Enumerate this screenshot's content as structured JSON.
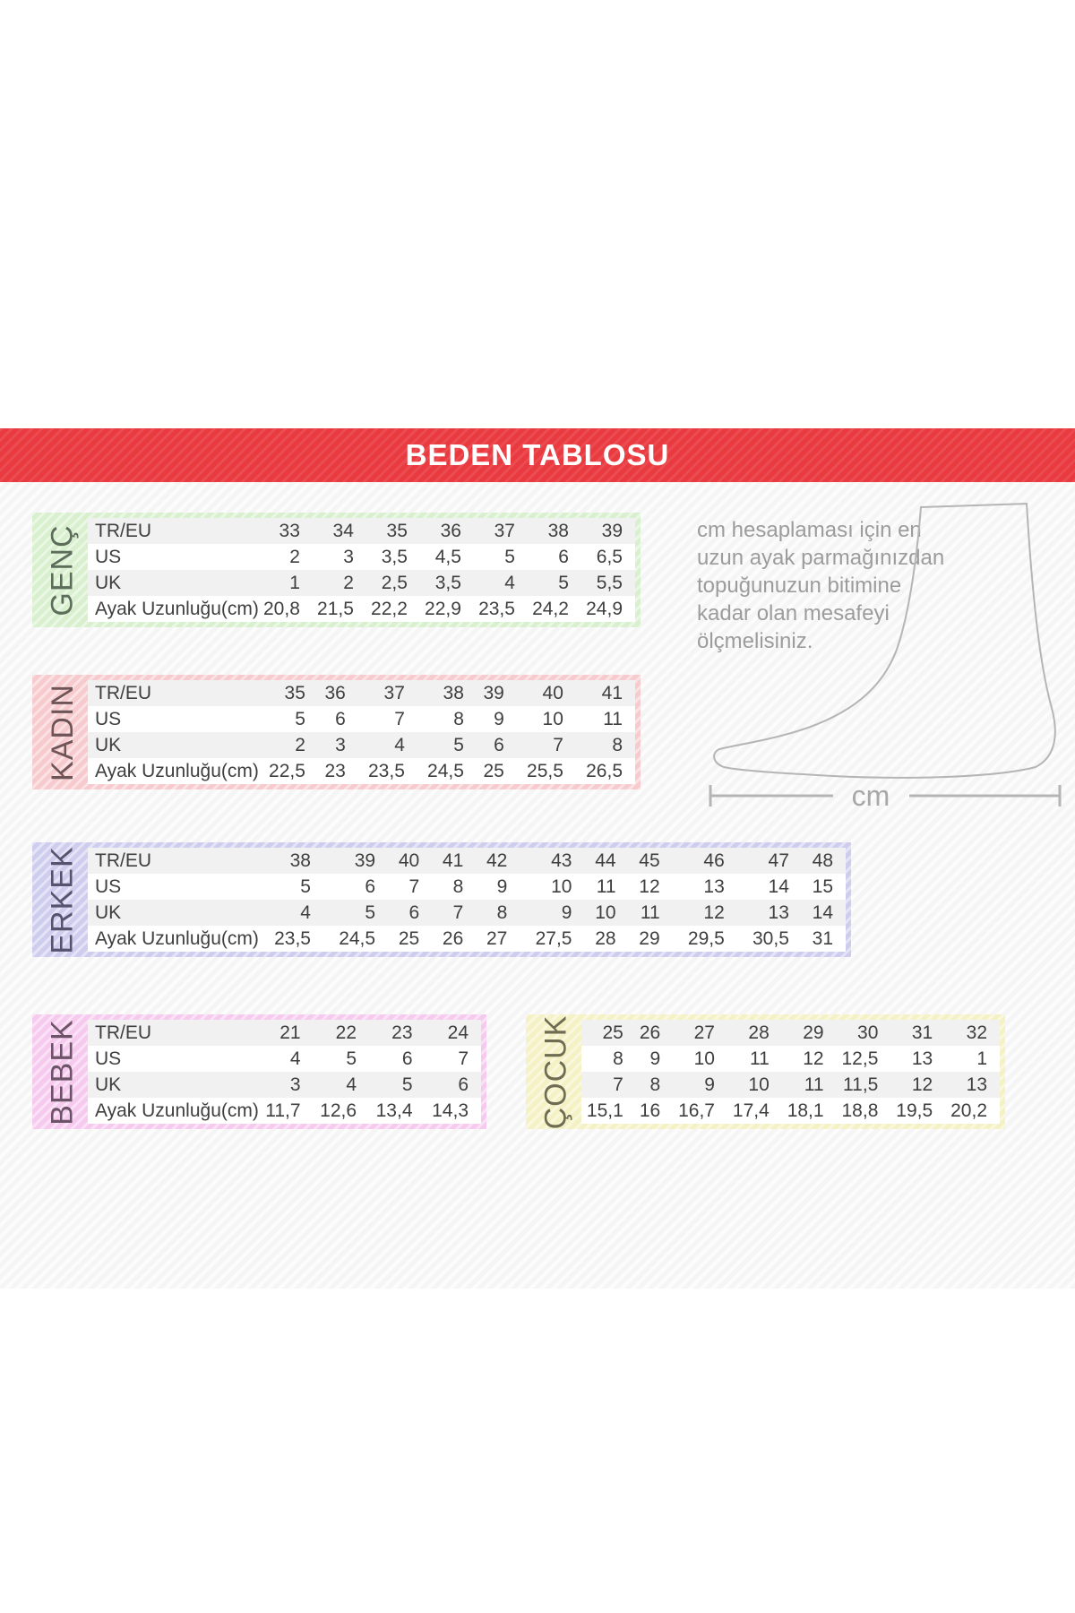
{
  "title": "BEDEN TABLOSU",
  "note_text": "cm hesaplaması için en\nuzun ayak parmağınızdan\ntopuğunuzun bitimine\nkadar olan mesafeyi\nölçmelisiniz.",
  "diagram": {
    "unit_label": "cm"
  },
  "colors": {
    "banner_red": "#e93a40",
    "row_alt_gray": "#f1f1f1",
    "cell_text": "#3f3f3f",
    "note_gray": "#9c9c9c"
  },
  "tables": [
    {
      "id": "genc",
      "category": "GENÇ",
      "accent": "#d9f0cf",
      "label_color": "#5c6d59",
      "rows": [
        {
          "label": "TR/EU",
          "values": [
            "33",
            "34",
            "35",
            "36",
            "37",
            "38",
            "39"
          ]
        },
        {
          "label": "US",
          "values": [
            "2",
            "3",
            "3,5",
            "4,5",
            "5",
            "6",
            "6,5"
          ]
        },
        {
          "label": "UK",
          "values": [
            "1",
            "2",
            "2,5",
            "3,5",
            "4",
            "5",
            "5,5"
          ]
        },
        {
          "label": "Ayak Uzunluğu(cm)",
          "values": [
            "20,8",
            "21,5",
            "22,2",
            "22,9",
            "23,5",
            "24,2",
            "24,9"
          ]
        }
      ]
    },
    {
      "id": "kadin",
      "category": "KADIN",
      "accent": "#f7cacd",
      "label_color": "#6e5456",
      "rows": [
        {
          "label": "TR/EU",
          "values": [
            "35",
            "36",
            "37",
            "38",
            "39",
            "40",
            "41"
          ]
        },
        {
          "label": "US",
          "values": [
            "5",
            "6",
            "7",
            "8",
            "9",
            "10",
            "11"
          ]
        },
        {
          "label": "UK",
          "values": [
            "2",
            "3",
            "4",
            "5",
            "6",
            "7",
            "8"
          ]
        },
        {
          "label": "Ayak Uzunluğu(cm)",
          "values": [
            "22,5",
            "23",
            "23,5",
            "24,5",
            "25",
            "25,5",
            "26,5"
          ]
        }
      ]
    },
    {
      "id": "erkek",
      "category": "ERKEK",
      "accent": "#cfcdee",
      "label_color": "#55546f",
      "rows": [
        {
          "label": "TR/EU",
          "values": [
            "38",
            "39",
            "40",
            "41",
            "42",
            "43",
            "44",
            "45",
            "46",
            "47",
            "48"
          ]
        },
        {
          "label": "US",
          "values": [
            "5",
            "6",
            "7",
            "8",
            "9",
            "10",
            "11",
            "12",
            "13",
            "14",
            "15"
          ]
        },
        {
          "label": "UK",
          "values": [
            "4",
            "5",
            "6",
            "7",
            "8",
            "9",
            "10",
            "11",
            "12",
            "13",
            "14"
          ]
        },
        {
          "label": "Ayak Uzunluğu(cm)",
          "values": [
            "23,5",
            "24,5",
            "25",
            "26",
            "27",
            "27,5",
            "28",
            "29",
            "29,5",
            "30,5",
            "31"
          ]
        }
      ]
    },
    {
      "id": "bebek",
      "category": "BEBEK",
      "accent": "#f6c9ef",
      "label_color": "#6d5368",
      "rows": [
        {
          "label": "TR/EU",
          "values": [
            "21",
            "22",
            "23",
            "24"
          ]
        },
        {
          "label": "US",
          "values": [
            "4",
            "5",
            "6",
            "7"
          ]
        },
        {
          "label": "UK",
          "values": [
            "3",
            "4",
            "5",
            "6"
          ]
        },
        {
          "label": "Ayak Uzunluğu(cm)",
          "values": [
            "11,7",
            "12,6",
            "13,4",
            "14,3"
          ]
        }
      ]
    },
    {
      "id": "cocuk",
      "category": "ÇOCUK",
      "accent": "#f4f2c4",
      "label_color": "#6e6d52",
      "rows": [
        {
          "values": [
            "25",
            "26",
            "27",
            "28",
            "29",
            "30",
            "31",
            "32"
          ]
        },
        {
          "values": [
            "8",
            "9",
            "10",
            "11",
            "12",
            "12,5",
            "13",
            "1"
          ]
        },
        {
          "values": [
            "7",
            "8",
            "9",
            "10",
            "11",
            "11,5",
            "12",
            "13"
          ]
        },
        {
          "values": [
            "15,1",
            "16",
            "16,7",
            "17,4",
            "18,1",
            "18,8",
            "19,5",
            "20,2"
          ]
        }
      ]
    }
  ]
}
